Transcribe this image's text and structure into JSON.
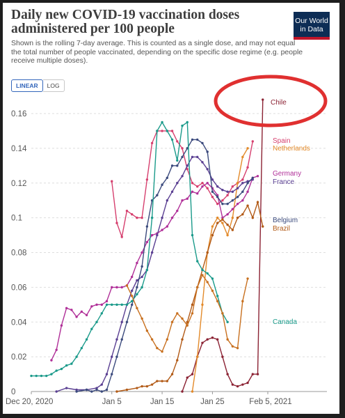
{
  "title": "Daily new COVID-19 vaccination doses administered per 100 people",
  "subtitle": "Shown is the rolling 7-day average. This is counted as a single dose, and may not equal the total number of people vaccinated, depending on the specific dose regime (e.g. people receive multiple doses).",
  "logo": {
    "line1": "Our World",
    "line2": "in Data"
  },
  "toggle": {
    "linear": "LINEAR",
    "log": "LOG"
  },
  "chart_data": {
    "type": "line",
    "x_axis": {
      "start": "2020-12-20",
      "end": "2021-02-05",
      "ticks": [
        {
          "day": 0,
          "label": "Dec 20, 2020"
        },
        {
          "day": 16,
          "label": "Jan 5"
        },
        {
          "day": 26,
          "label": "Jan 15"
        },
        {
          "day": 36,
          "label": "Jan 25"
        },
        {
          "day": 47,
          "label": "Feb 5, 2021"
        }
      ]
    },
    "y_axis": {
      "min": 0,
      "max": 0.16,
      "ticks": [
        {
          "value": 0,
          "label": "0"
        },
        {
          "value": 0.02,
          "label": "0.02"
        },
        {
          "value": 0.04,
          "label": "0.04"
        },
        {
          "value": 0.06,
          "label": "0.06"
        },
        {
          "value": 0.08,
          "label": "0.08"
        },
        {
          "value": 0.1,
          "label": "0.1"
        },
        {
          "value": 0.12,
          "label": "0.12"
        },
        {
          "value": 0.14,
          "label": "0.14"
        },
        {
          "value": 0.16,
          "label": "0.16"
        }
      ]
    },
    "grid": "horizontal",
    "series": [
      {
        "name": "Chile",
        "color": "#8b2233",
        "points": [
          [
            30,
            0.0
          ],
          [
            31,
            0.008
          ],
          [
            32,
            0.01
          ],
          [
            33,
            0.02
          ],
          [
            34,
            0.028
          ],
          [
            35,
            0.03
          ],
          [
            36,
            0.031
          ],
          [
            37,
            0.03
          ],
          [
            38,
            0.02
          ],
          [
            39,
            0.01
          ],
          [
            40,
            0.004
          ],
          [
            41,
            0.003
          ],
          [
            42,
            0.004
          ],
          [
            43,
            0.005
          ],
          [
            44,
            0.01
          ],
          [
            45,
            0.01
          ],
          [
            46,
            0.168
          ]
        ]
      },
      {
        "name": "Spain",
        "color": "#d63f6e",
        "points": [
          [
            16,
            0.121
          ],
          [
            17,
            0.097
          ],
          [
            18,
            0.089
          ],
          [
            19,
            0.104
          ],
          [
            20,
            0.102
          ],
          [
            21,
            0.1
          ],
          [
            22,
            0.1
          ],
          [
            23,
            0.122
          ],
          [
            24,
            0.143
          ],
          [
            25,
            0.15
          ],
          [
            26,
            0.15
          ],
          [
            27,
            0.15
          ],
          [
            28,
            0.15
          ],
          [
            29,
            0.144
          ],
          [
            30,
            0.14
          ],
          [
            31,
            0.128
          ],
          [
            32,
            0.12
          ],
          [
            33,
            0.118
          ],
          [
            34,
            0.12
          ],
          [
            35,
            0.117
          ],
          [
            36,
            0.112
          ],
          [
            37,
            0.108
          ],
          [
            38,
            0.11
          ],
          [
            39,
            0.113
          ],
          [
            40,
            0.118
          ],
          [
            41,
            0.12
          ],
          [
            42,
            0.122
          ],
          [
            43,
            0.129
          ],
          [
            44,
            0.144
          ]
        ]
      },
      {
        "name": "Netherlands",
        "color": "#e38a2a",
        "points": [
          [
            32,
            0.0
          ],
          [
            33,
            0.02
          ],
          [
            34,
            0.05
          ],
          [
            35,
            0.08
          ],
          [
            36,
            0.095
          ],
          [
            37,
            0.1
          ],
          [
            38,
            0.097
          ],
          [
            39,
            0.09
          ],
          [
            40,
            0.1
          ],
          [
            41,
            0.12
          ],
          [
            42,
            0.135
          ],
          [
            43,
            0.14
          ]
        ]
      },
      {
        "name": "Germany",
        "color": "#b02f98",
        "points": [
          [
            4,
            0.018
          ],
          [
            5,
            0.024
          ],
          [
            6,
            0.038
          ],
          [
            7,
            0.048
          ],
          [
            8,
            0.047
          ],
          [
            9,
            0.043
          ],
          [
            10,
            0.046
          ],
          [
            11,
            0.044
          ],
          [
            12,
            0.049
          ],
          [
            13,
            0.05
          ],
          [
            14,
            0.05
          ],
          [
            15,
            0.052
          ],
          [
            16,
            0.06
          ],
          [
            17,
            0.06
          ],
          [
            18,
            0.06
          ],
          [
            19,
            0.061
          ],
          [
            20,
            0.066
          ],
          [
            21,
            0.074
          ],
          [
            22,
            0.08
          ],
          [
            23,
            0.086
          ],
          [
            24,
            0.09
          ],
          [
            25,
            0.091
          ],
          [
            26,
            0.093
          ],
          [
            27,
            0.095
          ],
          [
            28,
            0.1
          ],
          [
            29,
            0.104
          ],
          [
            30,
            0.11
          ],
          [
            31,
            0.111
          ],
          [
            32,
            0.115
          ],
          [
            33,
            0.114
          ],
          [
            34,
            0.118
          ],
          [
            35,
            0.12
          ],
          [
            36,
            0.117
          ],
          [
            37,
            0.113
          ],
          [
            38,
            0.1
          ],
          [
            39,
            0.102
          ],
          [
            40,
            0.105
          ],
          [
            41,
            0.108
          ],
          [
            42,
            0.11
          ],
          [
            43,
            0.115
          ],
          [
            44,
            0.123
          ],
          [
            45,
            0.124
          ]
        ]
      },
      {
        "name": "France",
        "color": "#5a3f92",
        "points": [
          [
            5,
            0.0
          ],
          [
            7,
            0.002
          ],
          [
            9,
            0.001
          ],
          [
            11,
            0.001
          ],
          [
            13,
            0.002
          ],
          [
            14,
            0.004
          ],
          [
            15,
            0.01
          ],
          [
            16,
            0.02
          ],
          [
            17,
            0.03
          ],
          [
            18,
            0.04
          ],
          [
            19,
            0.05
          ],
          [
            20,
            0.058
          ],
          [
            21,
            0.064
          ],
          [
            22,
            0.066
          ],
          [
            23,
            0.07
          ],
          [
            24,
            0.08
          ],
          [
            25,
            0.09
          ],
          [
            26,
            0.1
          ],
          [
            27,
            0.11
          ],
          [
            28,
            0.115
          ],
          [
            29,
            0.12
          ],
          [
            30,
            0.124
          ],
          [
            31,
            0.13
          ],
          [
            32,
            0.135
          ],
          [
            33,
            0.135
          ],
          [
            34,
            0.132
          ],
          [
            35,
            0.128
          ],
          [
            36,
            0.122
          ],
          [
            37,
            0.118
          ],
          [
            38,
            0.116
          ],
          [
            39,
            0.115
          ],
          [
            40,
            0.115
          ],
          [
            41,
            0.117
          ],
          [
            42,
            0.12
          ],
          [
            43,
            0.121
          ],
          [
            44,
            0.122
          ]
        ]
      },
      {
        "name": "Belgium",
        "color": "#3b4a7d",
        "points": [
          [
            9,
            0.0
          ],
          [
            11,
            0.001
          ],
          [
            12,
            0.0
          ],
          [
            13,
            0.001
          ],
          [
            14,
            0.0
          ],
          [
            15,
            0.001
          ],
          [
            16,
            0.01
          ],
          [
            17,
            0.02
          ],
          [
            18,
            0.03
          ],
          [
            19,
            0.04
          ],
          [
            20,
            0.05
          ],
          [
            21,
            0.06
          ],
          [
            22,
            0.072
          ],
          [
            23,
            0.095
          ],
          [
            24,
            0.11
          ],
          [
            25,
            0.113
          ],
          [
            26,
            0.119
          ],
          [
            27,
            0.123
          ],
          [
            28,
            0.13
          ],
          [
            29,
            0.13
          ],
          [
            30,
            0.135
          ],
          [
            31,
            0.14
          ],
          [
            32,
            0.145
          ],
          [
            33,
            0.145
          ],
          [
            34,
            0.143
          ],
          [
            35,
            0.138
          ],
          [
            36,
            0.115
          ],
          [
            37,
            0.112
          ],
          [
            38,
            0.108
          ],
          [
            39,
            0.108
          ],
          [
            40,
            0.11
          ],
          [
            41,
            0.112
          ],
          [
            42,
            0.115
          ],
          [
            43,
            0.12
          ],
          [
            44,
            0.123
          ]
        ]
      },
      {
        "name": "Brazil",
        "color": "#b25a16",
        "points": [
          [
            17,
            0.0
          ],
          [
            19,
            0.001
          ],
          [
            21,
            0.002
          ],
          [
            22,
            0.003
          ],
          [
            23,
            0.003
          ],
          [
            24,
            0.004
          ],
          [
            25,
            0.006
          ],
          [
            26,
            0.006
          ],
          [
            27,
            0.006
          ],
          [
            28,
            0.01
          ],
          [
            29,
            0.018
          ],
          [
            30,
            0.03
          ],
          [
            31,
            0.04
          ],
          [
            32,
            0.05
          ],
          [
            33,
            0.06
          ],
          [
            34,
            0.07
          ],
          [
            35,
            0.08
          ],
          [
            36,
            0.09
          ],
          [
            37,
            0.097
          ],
          [
            38,
            0.099
          ],
          [
            39,
            0.096
          ],
          [
            40,
            0.093
          ],
          [
            41,
            0.1
          ],
          [
            42,
            0.102
          ],
          [
            43,
            0.107
          ],
          [
            44,
            0.1
          ],
          [
            45,
            0.109
          ],
          [
            46,
            0.095
          ]
        ]
      },
      {
        "name": "Canada",
        "color": "#1a9a8a",
        "points": [
          [
            0,
            0.009
          ],
          [
            1,
            0.009
          ],
          [
            2,
            0.009
          ],
          [
            3,
            0.009
          ],
          [
            4,
            0.01
          ],
          [
            5,
            0.012
          ],
          [
            6,
            0.013
          ],
          [
            7,
            0.015
          ],
          [
            8,
            0.016
          ],
          [
            9,
            0.02
          ],
          [
            10,
            0.025
          ],
          [
            11,
            0.03
          ],
          [
            12,
            0.036
          ],
          [
            13,
            0.04
          ],
          [
            14,
            0.045
          ],
          [
            15,
            0.05
          ],
          [
            16,
            0.05
          ],
          [
            17,
            0.05
          ],
          [
            18,
            0.05
          ],
          [
            19,
            0.05
          ],
          [
            20,
            0.052
          ],
          [
            21,
            0.056
          ],
          [
            22,
            0.06
          ],
          [
            23,
            0.07
          ],
          [
            24,
            0.1
          ],
          [
            25,
            0.15
          ],
          [
            26,
            0.155
          ],
          [
            27,
            0.15
          ],
          [
            28,
            0.145
          ],
          [
            29,
            0.133
          ],
          [
            30,
            0.153
          ],
          [
            31,
            0.155
          ],
          [
            32,
            0.09
          ],
          [
            33,
            0.075
          ],
          [
            34,
            0.07
          ],
          [
            35,
            0.068
          ],
          [
            36,
            0.065
          ],
          [
            37,
            0.055
          ],
          [
            38,
            0.045
          ],
          [
            39,
            0.04
          ]
        ]
      },
      {
        "name": "",
        "color": "#c8701f",
        "points": [
          [
            19,
            0.061
          ],
          [
            20,
            0.055
          ],
          [
            21,
            0.048
          ],
          [
            22,
            0.042
          ],
          [
            23,
            0.035
          ],
          [
            24,
            0.03
          ],
          [
            25,
            0.025
          ],
          [
            26,
            0.023
          ],
          [
            27,
            0.03
          ],
          [
            28,
            0.04
          ],
          [
            29,
            0.045
          ],
          [
            30,
            0.042
          ],
          [
            31,
            0.038
          ],
          [
            32,
            0.045
          ],
          [
            33,
            0.06
          ],
          [
            34,
            0.067
          ],
          [
            35,
            0.063
          ],
          [
            36,
            0.058
          ],
          [
            37,
            0.052
          ],
          [
            38,
            0.045
          ],
          [
            39,
            0.03
          ],
          [
            40,
            0.026
          ],
          [
            41,
            0.025
          ],
          [
            42,
            0.052
          ],
          [
            43,
            0.065
          ]
        ]
      }
    ]
  }
}
